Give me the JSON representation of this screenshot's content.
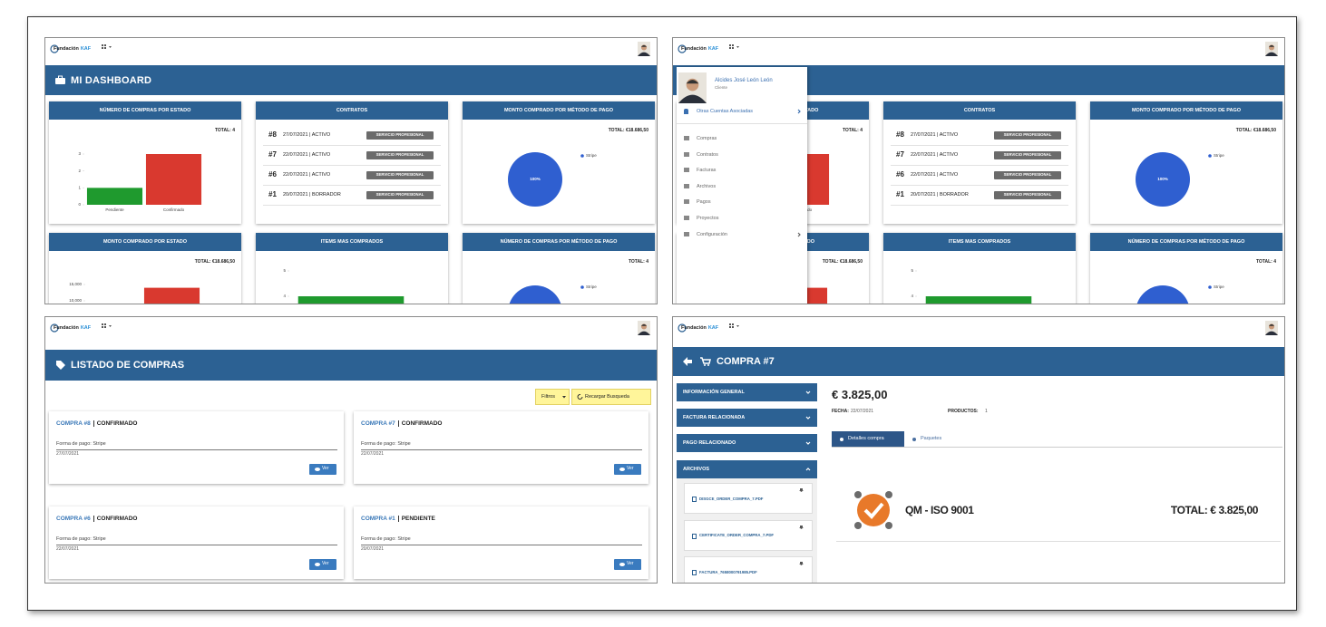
{
  "brand": {
    "name": "Fundación",
    "accent": "KAF"
  },
  "dashboard": {
    "title": "MI DASHBOARD",
    "cards": [
      {
        "title": "NÚMERO DE COMPRAS POR ESTADO",
        "total": "TOTAL: 4",
        "chart": {
          "type": "bar",
          "categories": [
            "Pendiente",
            "Confirmado"
          ],
          "values": [
            1,
            3
          ],
          "colors": [
            "#1f9a2e",
            "#d9392f"
          ],
          "ylim": [
            0,
            3
          ],
          "yticks": [
            0,
            1,
            2,
            3
          ]
        }
      },
      {
        "title": "CONTRATOS",
        "rows": [
          {
            "id": "#8",
            "text": "27/07/2021 | ACTIVO",
            "tag": "SERVICIO PROFESIONAL"
          },
          {
            "id": "#7",
            "text": "22/07/2021 | ACTIVO",
            "tag": "SERVICIO PROFESIONAL"
          },
          {
            "id": "#6",
            "text": "22/07/2021 | ACTIVO",
            "tag": "SERVICIO PROFESIONAL"
          },
          {
            "id": "#1",
            "text": "20/07/2021 | BORRADOR",
            "tag": "SERVICIO PROFESIONAL"
          }
        ]
      },
      {
        "title": "MONTO COMPRADO POR MÉTODO DE PAGO",
        "total": "TOTAL: €18.686,50",
        "chart": {
          "type": "pie",
          "categories": [
            "Stripe"
          ],
          "values": [
            100
          ],
          "value_labels": [
            "100%"
          ],
          "colors": [
            "#2f5fd0"
          ]
        }
      },
      {
        "title": "MONTO COMPRADO POR ESTADO",
        "total": "TOTAL: €18.686,50",
        "chart": {
          "type": "bar",
          "values": [
            14000
          ],
          "colors": [
            "#d9392f"
          ],
          "ylim": [
            10000,
            15000
          ],
          "yticks": [
            {
              "value": 10000,
              "label": "10,000"
            },
            {
              "value": 15000,
              "label": "15,000"
            }
          ]
        }
      },
      {
        "title": "ITEMS MAS COMPRADOS",
        "chart": {
          "type": "bar",
          "values": [
            4
          ],
          "colors": [
            "#1f9a2e"
          ],
          "ylim": [
            4,
            5
          ],
          "yticks": [
            4,
            5
          ]
        }
      },
      {
        "title": "NÚMERO DE COMPRAS POR MÉTODO DE PAGO",
        "total": "TOTAL: 4",
        "chart": {
          "type": "pie",
          "categories": [
            "Stripe"
          ],
          "values": [
            4
          ],
          "colors": [
            "#2f5fd0"
          ]
        }
      }
    ]
  },
  "user": {
    "name": "Alcides José León León",
    "role": "Cliente",
    "accounts": "Otras Cuentas Asociadas"
  },
  "menu": [
    "Compras",
    "Contratos",
    "Facturas",
    "Archivos",
    "Pagos",
    "Proyectos",
    "Configuración"
  ],
  "purchases": {
    "title": "LISTADO DE COMPRAS",
    "filters": "Filtros",
    "reload": "Recargar Busqueda",
    "items": [
      {
        "title": "COMPRA #8",
        "status": "CONFIRMADO",
        "payment": "Forma de pago: Stripe",
        "date": "27/07/2021",
        "action": "Ver"
      },
      {
        "title": "COMPRA #7",
        "status": "CONFIRMADO",
        "payment": "Forma de pago: Stripe",
        "date": "22/07/2021",
        "action": "Ver"
      },
      {
        "title": "COMPRA #6",
        "status": "CONFIRMADO",
        "payment": "Forma de pago: Stripe",
        "date": "22/07/2021",
        "action": "Ver"
      },
      {
        "title": "COMPRA #1",
        "status": "PENDIENTE",
        "payment": "Forma de pago: Stripe",
        "date": "20/07/2021",
        "action": "Ver"
      }
    ]
  },
  "purchase": {
    "title": "COMPRA #7",
    "sections": [
      "INFORMACIÓN GENERAL",
      "FACTURA RELACIONADA",
      "PAGO RELACIONADO",
      "ARCHIVOS"
    ],
    "files": [
      "DISGCE_ORDER_COMPRA_7.PDF",
      "CERTIFICATE_ORDER_COMPRA_7.PDF",
      "FACTURA_7658000791985.PDF"
    ],
    "amount": "€ 3.825,00",
    "date_label": "FECHA:",
    "date": "22/07/2021",
    "products_label": "PRODUCTOS:",
    "products": 1,
    "tabs": [
      "Detalles compra",
      "Paquetes"
    ],
    "product": "QM - ISO 9001",
    "total": "TOTAL: € 3.825,00"
  }
}
